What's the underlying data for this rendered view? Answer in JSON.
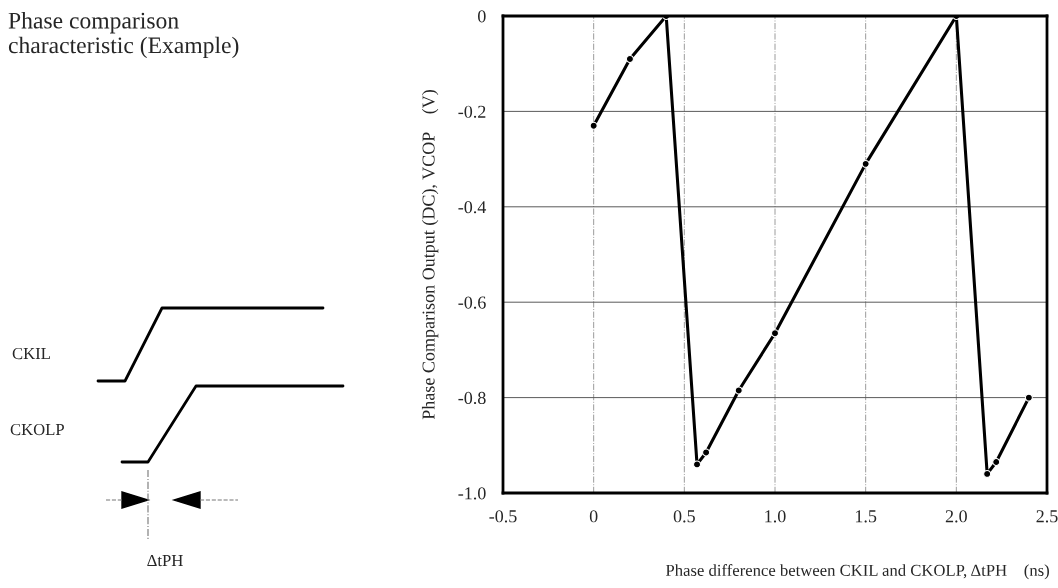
{
  "chart_data": {
    "type": "line",
    "title": "Phase comparison\ncharacteristic (Example)",
    "xlabel": "Phase difference between CKIL and CKOLP, ΔtPH    (ns)",
    "ylabel": "Phase Comparison Output (DC), VCOP    (V)",
    "annotations": [
      "CKIL",
      "CKOLP",
      "ΔtPH"
    ],
    "x": [
      0,
      0.2,
      0.4,
      0.57,
      0.62,
      0.8,
      1.0,
      1.5,
      2.0,
      2.17,
      2.22,
      2.4
    ],
    "series": [
      {
        "color": "#000000",
        "values": [
          -0.23,
          -0.09,
          0,
          -0.94,
          -0.915,
          -0.785,
          -0.665,
          -0.31,
          0,
          -0.96,
          -0.935,
          -0.8
        ]
      }
    ],
    "xlim": [
      -0.5,
      2.5
    ],
    "xticks": [
      {
        "value": -0.5,
        "label": "-0.5"
      },
      {
        "value": 0,
        "label": "0"
      },
      {
        "value": 0.5,
        "label": "0.5"
      },
      {
        "value": 1.0,
        "label": "1.0"
      },
      {
        "value": 1.5,
        "label": "1.5"
      },
      {
        "value": 2.0,
        "label": "2.0"
      },
      {
        "value": 2.5,
        "label": "2.5"
      }
    ],
    "ylim": [
      -1.0,
      0
    ],
    "yticks": [
      {
        "value": -1.0,
        "label": "-1.0"
      },
      {
        "value": -0.8,
        "label": "-0.8"
      },
      {
        "value": -0.6,
        "label": "-0.6"
      },
      {
        "value": -0.4,
        "label": "-0.4"
      },
      {
        "value": -0.2,
        "label": "-0.2"
      },
      {
        "value": 0,
        "label": "0"
      }
    ],
    "grid": true,
    "marker": "circle",
    "line_style": "solid",
    "legend": false
  }
}
